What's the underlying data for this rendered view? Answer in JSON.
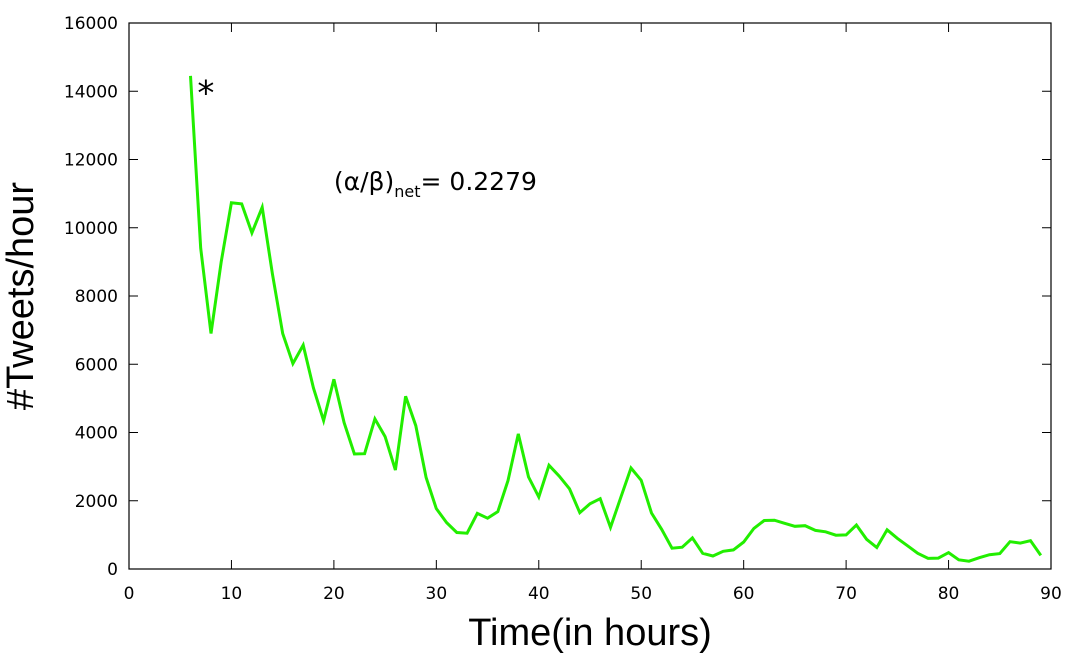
{
  "chart_data": {
    "type": "line",
    "xlabel": "Time(in hours)",
    "ylabel": "#Tweets/hour",
    "xlim": [
      0,
      90
    ],
    "ylim": [
      0,
      16000
    ],
    "xticks": [
      0,
      10,
      20,
      30,
      40,
      50,
      60,
      70,
      80,
      90
    ],
    "yticks": [
      0,
      2000,
      4000,
      6000,
      8000,
      10000,
      12000,
      14000,
      16000
    ],
    "grid": false,
    "series": [
      {
        "color": "#22ee00",
        "x": [
          6,
          7,
          8,
          9,
          10,
          11,
          12,
          13,
          14,
          15,
          16,
          17,
          18,
          19,
          20,
          21,
          22,
          23,
          24,
          25,
          26,
          27,
          28,
          29,
          30,
          31,
          32,
          33,
          34,
          35,
          36,
          37,
          38,
          39,
          40,
          41,
          42,
          43,
          44,
          45,
          46,
          47,
          48,
          49,
          50,
          51,
          52,
          53,
          54,
          55,
          56,
          57,
          58,
          59,
          60,
          61,
          62,
          63,
          64,
          65,
          66,
          67,
          68,
          69,
          70,
          71,
          72,
          73,
          74,
          75,
          76,
          77,
          78,
          79,
          80,
          81,
          82,
          83,
          84,
          85,
          86,
          87,
          88,
          89
        ],
        "y": [
          14450,
          9400,
          6900,
          9000,
          10730,
          10700,
          9850,
          10600,
          8650,
          6900,
          6020,
          6560,
          5310,
          4350,
          5560,
          4290,
          3370,
          3380,
          4400,
          3880,
          2900,
          5060,
          4200,
          2680,
          1770,
          1360,
          1070,
          1050,
          1630,
          1490,
          1680,
          2590,
          3960,
          2700,
          2110,
          3040,
          2720,
          2350,
          1650,
          1910,
          2060,
          1220,
          2090,
          2960,
          2600,
          1640,
          1160,
          610,
          640,
          910,
          460,
          380,
          520,
          560,
          790,
          1190,
          1420,
          1430,
          1340,
          1250,
          1270,
          1130,
          1090,
          990,
          1000,
          1290,
          870,
          630,
          1150,
          900,
          680,
          460,
          310,
          320,
          480,
          270,
          230,
          330,
          420,
          450,
          800,
          760,
          830,
          400
        ]
      }
    ],
    "annotation": {
      "prefix": "(α/β)",
      "subscript": "net",
      "suffix": "= 0.2279",
      "x": 20,
      "y": 11100
    },
    "marker": {
      "text": "*",
      "x": 7.5,
      "y": 14200
    }
  }
}
